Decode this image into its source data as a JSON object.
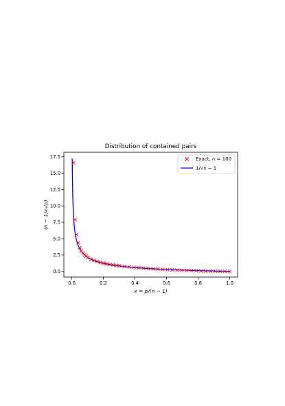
{
  "chart_data": {
    "type": "scatter",
    "title": "Distribution of contained pairs",
    "xlabel": "x = p/(n − 1)",
    "ylabel": "(n − 1)κₙ(p)",
    "xlim": [
      -0.05,
      1.05
    ],
    "ylim": [
      -0.87,
      18.2
    ],
    "xticks": [
      "0.0",
      "0.2",
      "0.4",
      "0.6",
      "0.8",
      "1.0"
    ],
    "yticks": [
      "0.0",
      "2.5",
      "5.0",
      "7.5",
      "10.0",
      "12.5",
      "15.0",
      "17.5"
    ],
    "grid": false,
    "legend_position": "top-right",
    "series": [
      {
        "name": "Exact, n = 100",
        "kind": "scatter",
        "marker": "x",
        "color": "#ff0000",
        "x": [
          0.0101,
          0.0202,
          0.0303,
          0.0404,
          0.0505,
          0.0606,
          0.0707,
          0.0808,
          0.0909,
          0.101,
          0.1212,
          0.1414,
          0.1616,
          0.1818,
          0.202,
          0.2222,
          0.2424,
          0.2626,
          0.2828,
          0.303,
          0.3333,
          0.3636,
          0.3939,
          0.4242,
          0.4545,
          0.4848,
          0.5152,
          0.5455,
          0.5758,
          0.6061,
          0.6364,
          0.6667,
          0.697,
          0.7273,
          0.7576,
          0.7879,
          0.8182,
          0.8485,
          0.8788,
          0.9091,
          0.9394,
          0.9697,
          1.0
        ],
        "y": [
          16.6,
          7.9,
          5.6,
          4.4,
          3.6,
          3.1,
          2.8,
          2.5,
          2.3,
          2.1,
          1.85,
          1.66,
          1.5,
          1.36,
          1.24,
          1.14,
          1.05,
          0.97,
          0.9,
          0.84,
          0.75,
          0.68,
          0.61,
          0.55,
          0.49,
          0.44,
          0.39,
          0.35,
          0.31,
          0.27,
          0.23,
          0.2,
          0.17,
          0.14,
          0.12,
          0.09,
          0.07,
          0.05,
          0.03,
          0.02,
          0.01,
          0.0,
          0.0
        ]
      },
      {
        "name": "1/√x − 1",
        "kind": "line",
        "color": "#0000ff",
        "function": "1/sqrt(x) - 1",
        "x_range": [
          0.003,
          1.0
        ]
      }
    ]
  }
}
